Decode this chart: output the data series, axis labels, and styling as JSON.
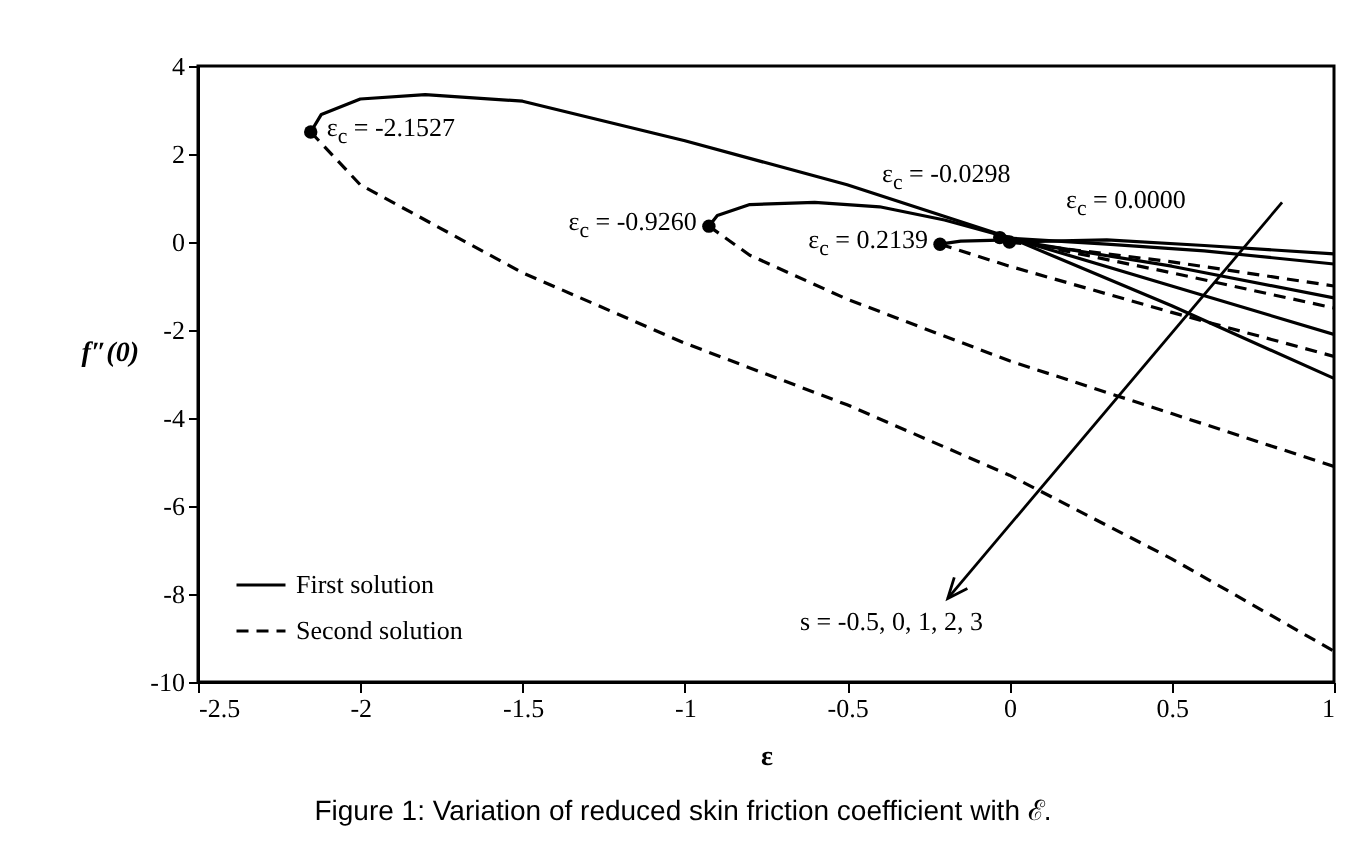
{
  "chart_data": {
    "type": "line",
    "title": "Figure 1: Variation of reduced skin friction coefficient with ℰ.",
    "xlabel": "ε",
    "ylabel": "f″(0)",
    "xlim": [
      -2.5,
      1
    ],
    "xticks": [
      -2.5,
      -2,
      -1.5,
      -1,
      -0.5,
      0,
      0.5,
      1
    ],
    "ylim": [
      -10,
      4
    ],
    "yticks": [
      -10,
      -8,
      -6,
      -4,
      -2,
      0,
      2,
      4
    ],
    "grid": false,
    "legend": "bottom left",
    "series": [
      {
        "name": "First solution",
        "color": "#000000",
        "line_style": "solid",
        "x": [
          -2.1527,
          -2.12,
          -2.0,
          -1.8,
          -1.5,
          -1.0,
          -0.5,
          0,
          0.5,
          1
        ],
        "values": [
          2.5,
          2.9,
          3.25,
          3.35,
          3.2,
          2.3,
          1.3,
          0.1,
          -1.45,
          -3.1
        ]
      },
      {
        "color": "#000000",
        "line_style": "solid",
        "x": [
          -0.926,
          -0.9,
          -0.8,
          -0.6,
          -0.4,
          -0.2,
          0,
          0.5,
          1
        ],
        "values": [
          0.36,
          0.6,
          0.85,
          0.9,
          0.8,
          0.5,
          0.1,
          -1.0,
          -2.1
        ]
      },
      {
        "color": "#000000",
        "line_style": "solid",
        "x": [
          -0.2139,
          -0.15,
          0,
          0.5,
          1
        ],
        "values": [
          -0.05,
          0.02,
          0.05,
          -0.55,
          -1.27
        ]
      },
      {
        "color": "#000000",
        "line_style": "solid",
        "x": [
          -0.0298,
          0.3,
          0.6,
          1
        ],
        "values": [
          0.1,
          -0.05,
          -0.2,
          -0.5
        ]
      },
      {
        "color": "#000000",
        "line_style": "solid",
        "x": [
          0,
          0.3,
          0.6,
          1
        ],
        "values": [
          0,
          0.05,
          -0.08,
          -0.27
        ]
      },
      {
        "name": "Second solution",
        "color": "#000000",
        "line_style": "dashed",
        "x": [
          -2.1527,
          -2.0,
          -1.5,
          -1.0,
          -0.5,
          0,
          0.5,
          1
        ],
        "values": [
          2.5,
          1.3,
          -0.7,
          -2.3,
          -3.7,
          -5.3,
          -7.2,
          -9.3
        ]
      },
      {
        "color": "#000000",
        "line_style": "dashed",
        "x": [
          -0.926,
          -0.8,
          -0.5,
          0,
          0.5,
          1
        ],
        "values": [
          0.36,
          -0.3,
          -1.3,
          -2.7,
          -3.9,
          -5.1
        ]
      },
      {
        "color": "#000000",
        "line_style": "dashed",
        "x": [
          -0.2139,
          0,
          0.5,
          1
        ],
        "values": [
          -0.05,
          -0.55,
          -1.6,
          -2.6
        ]
      },
      {
        "color": "#000000",
        "line_style": "dashed",
        "x": [
          -0.0298,
          0.5,
          1
        ],
        "values": [
          0.1,
          -0.7,
          -1.5
        ]
      },
      {
        "color": "#000000",
        "line_style": "dashed",
        "x": [
          0,
          0.5,
          1
        ],
        "values": [
          0,
          -0.45,
          -1.0
        ]
      },
      {
        "type": "scatter",
        "color": "#000000",
        "marker": "circle",
        "x": [
          -2.1527,
          -0.926,
          -0.2139,
          -0.0298,
          0
        ],
        "values": [
          2.5,
          0.36,
          -0.05,
          0.1,
          0
        ]
      }
    ],
    "annotations": [
      {
        "text": "ε$_{c}$ = -2.1527",
        "x": -2.1527,
        "y": 2.5
      },
      {
        "text": "ε$_{c}$ = -0.9260",
        "x": -0.926,
        "y": 0.36
      },
      {
        "text": "ε$_{c}$ = 0.2139",
        "x": -0.2139,
        "y": -0.05
      },
      "ε$_{c}$ = -0.0298",
      "ε$_{c}$ = 0.0000",
      "s = -0.5, 0, 1, 2, 3"
    ]
  }
}
